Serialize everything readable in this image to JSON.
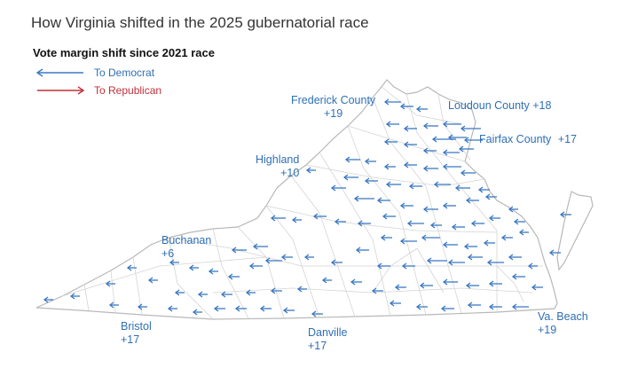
{
  "title": "How Virginia shifted in the 2025 gubernatorial race",
  "subtitle": "Vote margin shift since 2021 race",
  "legend": [
    {
      "label": "To Democrat",
      "color": "#3a78c2",
      "direction": "left"
    },
    {
      "label": "To Republican",
      "color": "#c0303a",
      "direction": "right"
    }
  ],
  "colors": {
    "democrat": "#3a78c2",
    "republican": "#c0303a",
    "county_fill": "#ffffff",
    "county_border": "#cfcfcf",
    "state_border": "#b8b8b8"
  },
  "callouts": [
    {
      "id": "frederick",
      "name": "Frederick County",
      "shift": "+19",
      "align": "center"
    },
    {
      "id": "loudoun",
      "name": "Loudoun County",
      "shift": "+18",
      "align": "inline"
    },
    {
      "id": "fairfax",
      "name": "Fairfax County",
      "shift": "+17",
      "align": "inline"
    },
    {
      "id": "highland",
      "name": "Highland",
      "shift": "+10",
      "align": "right"
    },
    {
      "id": "buchanan",
      "name": "Buchanan",
      "shift": "+6",
      "align": "left"
    },
    {
      "id": "bristol",
      "name": "Bristol",
      "shift": "+17",
      "align": "left"
    },
    {
      "id": "danville",
      "name": "Danville",
      "shift": "+17",
      "align": "left"
    },
    {
      "id": "vabeach",
      "name": "Va. Beach",
      "shift": "+19",
      "align": "left"
    }
  ]
}
